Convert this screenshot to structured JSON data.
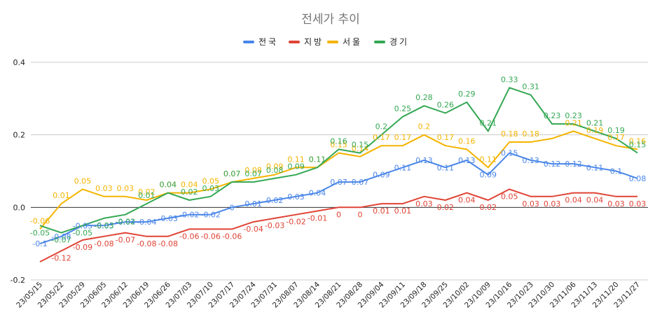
{
  "chart_data": {
    "type": "line",
    "title": "전세가 추이",
    "xlabel": "",
    "ylabel": "",
    "ylim": [
      -0.2,
      0.4
    ],
    "yticks": [
      "0.4",
      "0.2",
      "0.0",
      "-0.2"
    ],
    "grid": true,
    "legend_position": "top",
    "categories": [
      "23/05/15",
      "23/05/22",
      "23/05/29",
      "23/06/05",
      "23/06/12",
      "23/06/19",
      "23/06/26",
      "23/07/03",
      "23/07/10",
      "23/07/17",
      "23/07/24",
      "23/07/31",
      "23/08/07",
      "23/08/14",
      "23/08/21",
      "23/08/28",
      "23/09/04",
      "23/09/11",
      "23/09/18",
      "23/09/25",
      "23/10/02",
      "23/10/09",
      "23/10/16",
      "23/10/23",
      "23/10/30",
      "23/11/06",
      "23/11/13",
      "23/11/20",
      "23/11/27"
    ],
    "series": [
      {
        "name": "전국",
        "color": "#4a86e8",
        "values": [
          -0.1,
          -0.08,
          -0.05,
          -0.05,
          -0.04,
          -0.04,
          -0.03,
          -0.02,
          -0.02,
          0,
          0.01,
          0.02,
          0.03,
          0.04,
          0.07,
          0.07,
          0.09,
          0.11,
          0.13,
          0.11,
          0.13,
          0.09,
          0.15,
          0.13,
          0.12,
          0.12,
          0.11,
          0.1,
          0.08
        ]
      },
      {
        "name": "지방",
        "color": "#e04335",
        "values": [
          -0.15,
          -0.12,
          -0.09,
          -0.08,
          -0.07,
          -0.08,
          -0.08,
          -0.06,
          -0.06,
          -0.06,
          -0.04,
          -0.03,
          -0.02,
          -0.01,
          0,
          0,
          0.01,
          0.01,
          0.03,
          0.02,
          0.04,
          0.02,
          0.05,
          0.03,
          0.03,
          0.04,
          0.04,
          0.03,
          0.03
        ]
      },
      {
        "name": "서울",
        "color": "#f4b400",
        "values": [
          -0.06,
          0.01,
          0.05,
          0.03,
          0.03,
          0.02,
          0.04,
          0.04,
          0.05,
          0.07,
          0.08,
          0.09,
          0.11,
          0.11,
          0.15,
          0.14,
          0.17,
          0.17,
          0.2,
          0.17,
          0.16,
          0.11,
          0.18,
          0.18,
          0.19,
          0.21,
          0.19,
          0.17,
          0.16
        ]
      },
      {
        "name": "경기",
        "color": "#34a853",
        "values": [
          -0.05,
          -0.07,
          -0.05,
          -0.03,
          -0.02,
          0.01,
          0.04,
          0.02,
          0.03,
          0.07,
          0.07,
          0.08,
          0.09,
          0.11,
          0.16,
          0.15,
          0.2,
          0.25,
          0.28,
          0.26,
          0.29,
          0.21,
          0.33,
          0.31,
          0.23,
          0.23,
          0.21,
          0.19,
          0.15
        ]
      }
    ],
    "data_labels": {
      "전국": [
        "-0.1",
        "-0.08",
        "-0.05",
        "-0.05",
        "-0.04",
        "-0.04",
        "-0.03",
        "-0.02",
        "-0.02",
        "0",
        "0.01",
        "0.02",
        "0.03",
        "0.04",
        "0.07",
        "0.07",
        "0.09",
        "0.11",
        "0.13",
        "0.11",
        "0.13",
        "0.09",
        "0.15",
        "0.13",
        "0.12",
        "0.12",
        "0.11",
        "0.1",
        "0.08"
      ],
      "지방": [
        "",
        "-0.12",
        "-0.09",
        "-0.08",
        "-0.07",
        "-0.08",
        "-0.08",
        "-0.06",
        "-0.06",
        "-0.06",
        "-0.04",
        "-0.03",
        "-0.02",
        "-0.01",
        "0",
        "0",
        "0.01",
        "0.01",
        "0.03",
        "0.02",
        "0.04",
        "0.02",
        "0.05",
        "0.03",
        "0.03",
        "0.04",
        "0.04",
        "0.03",
        "0.03"
      ],
      "서울": [
        "-0.06",
        "0.01",
        "0.05",
        "0.03",
        "0.03",
        "0.02",
        "0.04",
        "0.04",
        "0.05",
        "0.07",
        "0.08",
        "0.09",
        "0.11",
        "0.11",
        "0.15",
        "0.14",
        "0.17",
        "0.17",
        "0.2",
        "0.17",
        "0.16",
        "0.11",
        "0.18",
        "0.18",
        "",
        "0.21",
        "0.19",
        "0.17",
        "0.16"
      ],
      "경기": [
        "-0.05",
        "-0.07",
        "-0.05",
        "-0.03",
        "-0.02",
        "0.01",
        "0.04",
        "0.02",
        "0.03",
        "0.07",
        "0.07",
        "0.08",
        "0.09",
        "0.11",
        "0.16",
        "0.15",
        "0.2",
        "0.25",
        "0.28",
        "0.26",
        "0.29",
        "0.21",
        "0.33",
        "0.31",
        "0.23",
        "0.23",
        "0.21",
        "0.19",
        "0.15"
      ]
    }
  }
}
